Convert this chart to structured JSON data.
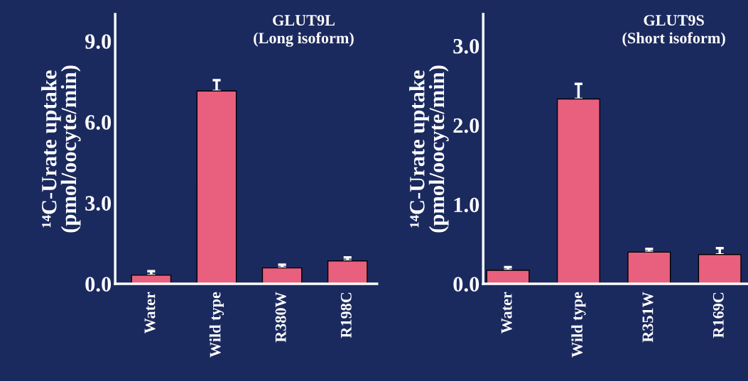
{
  "chart_data": [
    {
      "type": "bar",
      "title": "GLUT9L\n(Long isoform)",
      "ylabel": "¹⁴C-Urate uptake\n(pmol/oocyte/min)",
      "categories": [
        "Water",
        "Wild type",
        "R380W",
        "R198C"
      ],
      "color": "#e8607e",
      "values": [
        0.32,
        7.15,
        0.59,
        0.85
      ],
      "errors": [
        [
          0.32,
          0.47
        ],
        [
          7.15,
          7.55
        ],
        [
          0.59,
          0.71
        ],
        [
          0.85,
          0.98
        ]
      ],
      "ylim": [
        0,
        10
      ],
      "yticks": [
        {
          "value": 0,
          "label": "0.0"
        },
        {
          "value": 3,
          "label": "3.0"
        },
        {
          "value": 6,
          "label": "6.0"
        },
        {
          "value": 9,
          "label": "9.0"
        }
      ],
      "grid": false,
      "legend": false
    },
    {
      "type": "bar",
      "title": "GLUT9S\n(Short isoform)",
      "ylabel": "¹⁴C-Urate uptake\n(pmol/oocyte/min)",
      "categories": [
        "Water",
        "Wild type",
        "R351W",
        "R169C"
      ],
      "color": "#e8607e",
      "values": [
        0.17,
        2.33,
        0.4,
        0.37
      ],
      "errors": [
        [
          0.17,
          0.21
        ],
        [
          2.33,
          2.52
        ],
        [
          0.4,
          0.44
        ],
        [
          0.37,
          0.45
        ]
      ],
      "ylim": [
        0,
        3.4
      ],
      "yticks": [
        {
          "value": 0,
          "label": "0.0"
        },
        {
          "value": 1,
          "label": "1.0"
        },
        {
          "value": 2,
          "label": "2.0"
        },
        {
          "value": 3,
          "label": "3.0"
        }
      ],
      "grid": false,
      "legend": false
    }
  ]
}
